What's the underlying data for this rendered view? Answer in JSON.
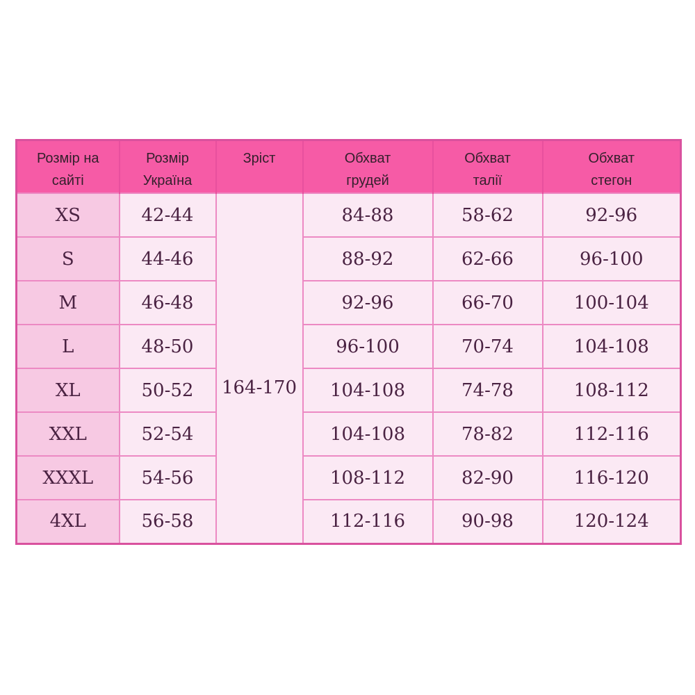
{
  "chart_data": {
    "type": "table",
    "columns": [
      "Розмір на сайті",
      "Розмір Україна",
      "Зріст",
      "Обхват грудей",
      "Обхват талії",
      "Обхват стегон"
    ],
    "height_value": "164-170",
    "height_note": "merged cell spanning all 8 size rows",
    "rows": [
      {
        "site": "XS",
        "ukraine": "42-44",
        "chest": "84-88",
        "waist": "58-62",
        "hips": "92-96"
      },
      {
        "site": "S",
        "ukraine": "44-46",
        "chest": "88-92",
        "waist": "62-66",
        "hips": "96-100"
      },
      {
        "site": "M",
        "ukraine": "46-48",
        "chest": "92-96",
        "waist": "66-70",
        "hips": "100-104"
      },
      {
        "site": "L",
        "ukraine": "48-50",
        "chest": "96-100",
        "waist": "70-74",
        "hips": "104-108"
      },
      {
        "site": "XL",
        "ukraine": "50-52",
        "chest": "104-108",
        "waist": "74-78",
        "hips": "108-112"
      },
      {
        "site": "XXL",
        "ukraine": "52-54",
        "chest": "104-108",
        "waist": "78-82",
        "hips": "112-116"
      },
      {
        "site": "XXXL",
        "ukraine": "54-56",
        "chest": "108-112",
        "waist": "82-90",
        "hips": "116-120"
      },
      {
        "site": "4XL",
        "ukraine": "56-58",
        "chest": "112-116",
        "waist": "90-98",
        "hips": "120-124"
      }
    ]
  },
  "colors": {
    "page_bg": "#ffffff",
    "header_bg": "#f65ba6",
    "header_separator": "#e8509e",
    "header_text": "#34202c",
    "outer_border": "#d9519e",
    "grid_line": "#ec89c3",
    "label_col_bg": "#f7c9e3",
    "cell_bg": "#fbe9f4",
    "data_text": "#4a2242"
  }
}
